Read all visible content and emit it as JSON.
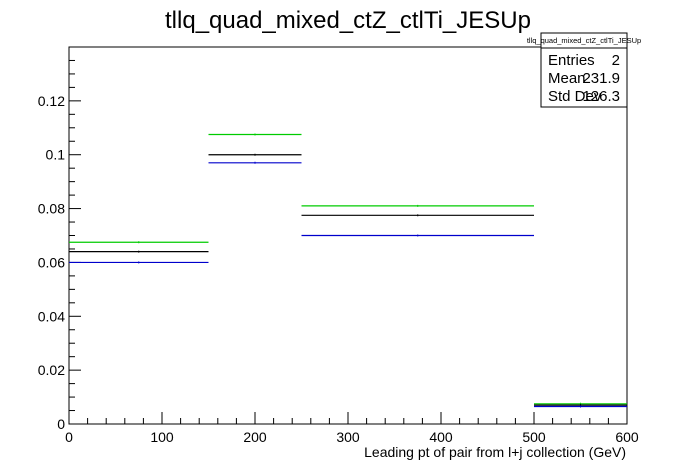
{
  "chart_data": {
    "type": "step",
    "title": "tllq_quad_mixed_ctZ_ctlTi_JESUp",
    "xlabel": "Leading pt of pair from l+j collection (GeV)",
    "ylabel": "",
    "xlim": [
      0,
      600
    ],
    "ylim": [
      0,
      0.14
    ],
    "x_ticks": [
      0,
      100,
      200,
      300,
      400,
      500,
      600
    ],
    "x_tick_labels": [
      "0",
      "100",
      "200",
      "300",
      "400",
      "500",
      "600"
    ],
    "y_ticks": [
      0,
      0.02,
      0.04,
      0.06,
      0.08,
      0.1,
      0.12
    ],
    "y_tick_labels": [
      "0",
      "0.02",
      "0.04",
      "0.06",
      "0.08",
      "0.1",
      "0.12"
    ],
    "bin_edges": [
      0,
      150,
      250,
      500,
      600
    ],
    "series": [
      {
        "color": "#00cc00",
        "values": [
          0.0675,
          0.1075,
          0.081,
          0.0075
        ]
      },
      {
        "color": "#000000",
        "values": [
          0.064,
          0.1,
          0.0775,
          0.007
        ]
      },
      {
        "color": "#0000cc",
        "values": [
          0.06,
          0.097,
          0.07,
          0.0065
        ]
      }
    ],
    "grid": false,
    "legend": "none"
  },
  "stats_box": {
    "title": "tllq_quad_mixed_ctZ_ctlTi_JESUp",
    "rows": [
      {
        "label": "Entries",
        "value": "2"
      },
      {
        "label": "Mean",
        "value": "231.9"
      },
      {
        "label": "Std Dev",
        "value": "126.3"
      }
    ]
  }
}
